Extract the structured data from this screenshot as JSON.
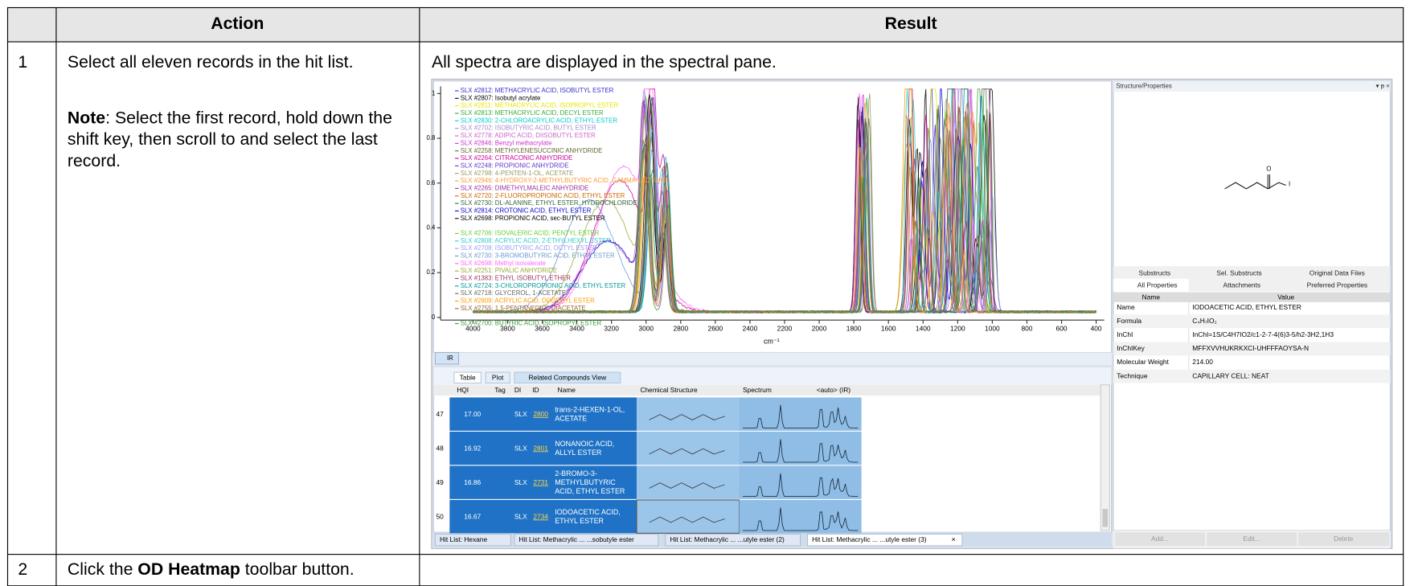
{
  "table": {
    "header": [
      "Action",
      "Result"
    ],
    "rows": [
      {
        "number": "1",
        "action": {
          "text": "Select all eleven records in the hit list.",
          "note_label": "Note",
          "note_text": ": Select the first record, hold down the shift key, then scroll to and select the last record."
        },
        "result": {
          "text": "All spectra are displayed in the spectral pane.",
          "screenshot": {
            "plot": {
              "legend": [
                {
                  "label": "SLX #2812: METHACRYLIC ACID, ISOBUTYL ESTER",
                  "color": "#3333cc"
                },
                {
                  "label": "SLX #2807: Isobutyl acrylate",
                  "color": "#000000"
                },
                {
                  "label": "SLX #2811: METHACRYLIC ACID, ISOPROPYL ESTER",
                  "color": "#e6e600"
                },
                {
                  "label": "SLX #2813: METHACRYLIC ACID, DECYL ESTER",
                  "color": "#33aa33"
                },
                {
                  "label": "SLX #2830: 2-CHLOROACRYLIC ACID, ETHYL ESTER",
                  "color": "#00cccc"
                },
                {
                  "label": "SLX #2702: ISOBUTYRIC ACID, BUTYL ESTER",
                  "color": "#aa88cc"
                },
                {
                  "label": "SLX #2778: ADIPIC ACID, DIISOBUTYL ESTER",
                  "color": "#cc66cc"
                },
                {
                  "label": "SLX #2846: Benzyl methacrylate",
                  "color": "#cc33cc"
                },
                {
                  "label": "SLX #2258: METHYLENESUCCINIC ANHYDRIDE",
                  "color": "#666633"
                },
                {
                  "label": "SLX #2264: CITRACONIC ANHYDRIDE",
                  "color": "#cc0099"
                },
                {
                  "label": "SLX #2248: PROPIONIC ANHYDRIDE",
                  "color": "#6633cc"
                },
                {
                  "label": "SLX #2798: 4-PENTEN-1-OL, ACETATE",
                  "color": "#999966"
                },
                {
                  "label": "SLX #2946: 4-HYDROXY-2-METHYLBUTYRIC ACID, GAMMA-LACTONE",
                  "color": "#ff9933"
                },
                {
                  "label": "SLX #2265: DIMETHYLMALEIC ANHYDRIDE",
                  "color": "#993399"
                },
                {
                  "label": "SLX #2720: 2-FLUOROPROPIONIC ACID, ETHYL ESTER",
                  "color": "#cc6600"
                },
                {
                  "label": "SLX #2730: DL-ALANINE, ETHYL ESTER, HYDROCHLORIDE",
                  "color": "#336633"
                },
                {
                  "label": "SLX #2814: CROTONIC ACID, ETHYL ESTER",
                  "color": "#0000cc"
                },
                {
                  "label": "SLX #2698: PROPIONIC ACID, sec-BUTYL ESTER",
                  "color": "#000000"
                },
                {
                  "label": "SLX #2706: ISOVALERIC ACID, PENTYL ESTER",
                  "color": "#66cc33"
                },
                {
                  "label": "SLX #2808: ACRYLIC ACID, 2-ETHYLHEXYL ESTER",
                  "color": "#33cccc"
                },
                {
                  "label": "SLX #2708: ISOBUTYRIC ACID, OCTYL ESTER",
                  "color": "#9999ff"
                },
                {
                  "label": "SLX #2730: 3-BROMOBUTYRIC ACID, ETHYL ESTER",
                  "color": "#6699cc"
                },
                {
                  "label": "SLX #2698: Methyl isovalerate",
                  "color": "#ff66ff"
                },
                {
                  "label": "SLX #2251: PIVALIC ANHYDRIDE",
                  "color": "#99aa33"
                },
                {
                  "label": "SLX #1383: ETHYL ISOBUTYL ETHER",
                  "color": "#993366"
                },
                {
                  "label": "SLX #2724: 3-CHLOROPROPIONIC ACID, ETHYL ESTER",
                  "color": "#009999"
                },
                {
                  "label": "SLX #2718: GLYCEROL, 1-ACETATE",
                  "color": "#666666"
                },
                {
                  "label": "SLX #2809: ACRYLIC ACID, DODECYL ESTER",
                  "color": "#ff9900"
                },
                {
                  "label": "SLX #2755: 1,5-PENTANEDIOL DIACETATE",
                  "color": "#996633"
                },
                {
                  "label": "SLX #2700: BUTYRIC ACID, ISOPROPYL ESTER",
                  "color": "#339933"
                }
              ],
              "yticks": [
                0,
                0.2,
                0.4,
                0.6,
                0.8,
                1
              ],
              "xticks": [
                4000,
                3800,
                3600,
                3400,
                3200,
                3000,
                2800,
                2600,
                2400,
                2200,
                2000,
                1800,
                1600,
                1400,
                1200,
                1000,
                800,
                600,
                400
              ],
              "xlabel": "cm⁻¹",
              "tab": "IR"
            },
            "properties": {
              "title": "Structure/Properties",
              "structure_labels": [
                "O",
                "I"
              ],
              "tabs": [
                [
                  "Substructs",
                  "Sel. Substructs",
                  "Original Data Files"
                ],
                [
                  "All Properties",
                  "Attachments",
                  "Preferred Properties"
                ]
              ],
              "columns": [
                "Name",
                "Value"
              ],
              "rows": [
                [
                  "Name",
                  "IODOACETIC ACID, ETHYL ESTER"
                ],
                [
                  "Formula",
                  "C₄H₇IO₂"
                ],
                [
                  "InChI",
                  "InChI=1S/C4H7IO2/c1-2-7-4(6)3-5/h2-3H2,1H3"
                ],
                [
                  "InChIKey",
                  "MFFXVVHUKRKXCI-UHFFFAOYSA-N"
                ],
                [
                  "Molecular Weight",
                  "214.00"
                ],
                [
                  "Technique",
                  "CAPILLARY CELL: NEAT"
                ]
              ],
              "buttons": [
                "Add...",
                "Edit...",
                "Delete"
              ]
            },
            "hitlist": {
              "tabs": [
                "Table",
                "Plot",
                "Related Compounds View"
              ],
              "columns": [
                "HQI",
                "Tag",
                "DI",
                "ID",
                "Name",
                "Chemical Structure",
                "Spectrum",
                "<auto> (IR)"
              ],
              "rows": [
                [
                  "47",
                  "17.00",
                  "SLX",
                  "2800",
                  "trans-2-HEXEN-1-OL, ACETATE"
                ],
                [
                  "48",
                  "16.92",
                  "SLX",
                  "2801",
                  "NONANOIC ACID, ALLYL ESTER"
                ],
                [
                  "49",
                  "16.86",
                  "SLX",
                  "2731",
                  "2-BROMO-3-METHYLBUTYRIC ACID, ETHYL ESTER"
                ],
                [
                  "50",
                  "16.67",
                  "SLX",
                  "2734",
                  "IODOACETIC ACID, ETHYL ESTER"
                ]
              ],
              "bottom_tabs": [
                "Hit List: Hexane",
                "Hit List: Methacrylic ... ...sobutyle ester",
                "Hit List: Methacrylic ... ...utyle ester (2)",
                "Hit List: Methacrylic ... ...utyle ester (3)",
                "×"
              ]
            }
          }
        }
      },
      {
        "number": "2",
        "action": {
          "parts": [
            "Click the ",
            "OD Heatmap",
            " toolbar button."
          ]
        }
      }
    ]
  }
}
